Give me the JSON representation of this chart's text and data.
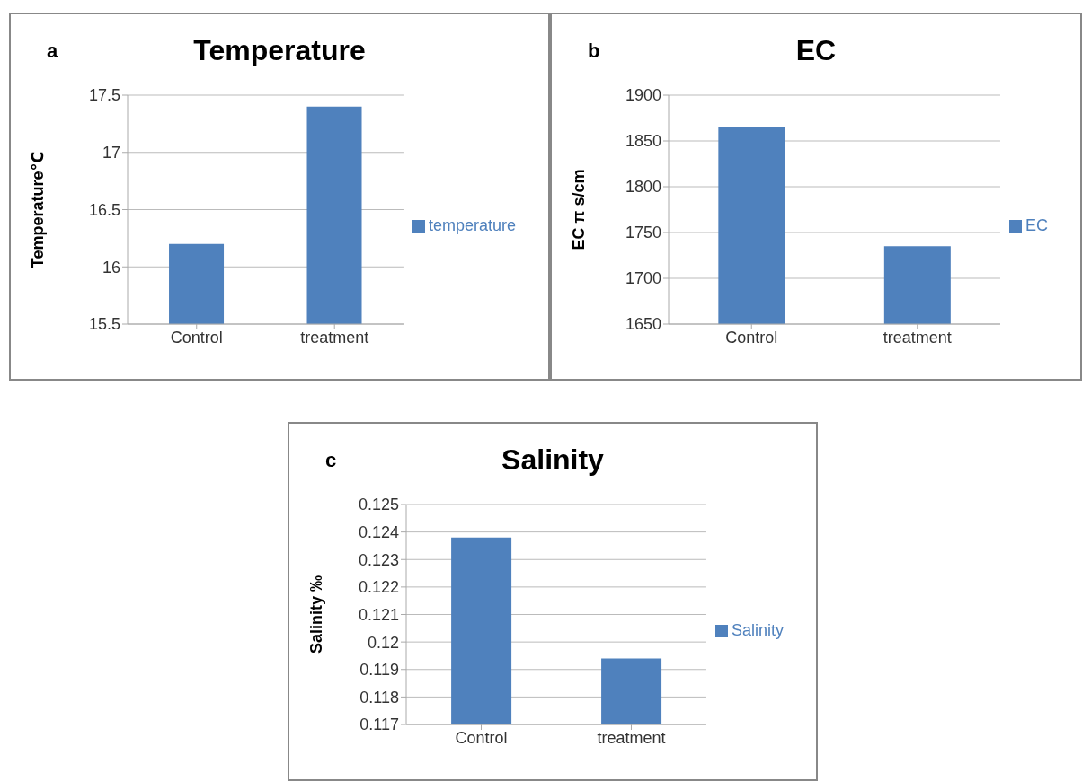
{
  "chart_data": [
    {
      "type": "bar",
      "title": "Temperature",
      "ylabel": "Temperature℃",
      "annotations": [
        "a"
      ],
      "categories": [
        "Control",
        "treatment"
      ],
      "series": [
        {
          "name": "temperature",
          "color": "#4f81bd",
          "values": [
            16.2,
            17.4
          ]
        }
      ],
      "ylim": [
        15.5,
        17.5
      ],
      "yticks": [
        15.5,
        16,
        16.5,
        17,
        17.5
      ],
      "grid": "y",
      "legend": "right"
    },
    {
      "type": "bar",
      "title": "EC",
      "ylabel": "EC π s/cm",
      "annotations": [
        "b"
      ],
      "categories": [
        "Control",
        "treatment"
      ],
      "series": [
        {
          "name": "EC",
          "color": "#4f81bd",
          "values": [
            1865,
            1735
          ]
        }
      ],
      "ylim": [
        1650,
        1900
      ],
      "yticks": [
        1650,
        1700,
        1750,
        1800,
        1850,
        1900
      ],
      "grid": "y",
      "legend": "right"
    },
    {
      "type": "bar",
      "title": "Salinity",
      "ylabel": "Salinity ‰",
      "annotations": [
        "c"
      ],
      "categories": [
        "Control",
        "treatment"
      ],
      "series": [
        {
          "name": "Salinity",
          "color": "#4f81bd",
          "values": [
            0.1238,
            0.1194
          ]
        }
      ],
      "ylim": [
        0.117,
        0.125
      ],
      "yticks": [
        0.117,
        0.118,
        0.119,
        0.12,
        0.121,
        0.122,
        0.123,
        0.124,
        0.125
      ],
      "grid": "y",
      "legend": "right"
    }
  ]
}
